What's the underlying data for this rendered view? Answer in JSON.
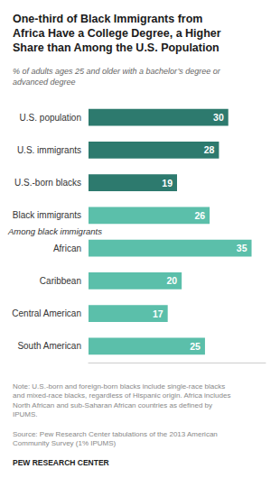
{
  "chart_data": {
    "type": "bar",
    "orientation": "horizontal",
    "title": "One-third of Black Immigrants from\nAfrica Have a College Degree, a Higher\nShare than Among the U.S. Population",
    "subtitle": "% of adults ages 25 and older with a bachelor’s degree or\nadvanced degree",
    "categories": [
      "U.S. population",
      "U.S. immigrants",
      "U.S.-born blacks",
      "Black immigrants",
      "African",
      "Caribbean",
      "Central American",
      "South American"
    ],
    "values": [
      30,
      28,
      19,
      26,
      35,
      20,
      17,
      25
    ],
    "colors": [
      "#2d7a6e",
      "#2d7a6e",
      "#2d7a6e",
      "#5bbfaa",
      "#5bbfaa",
      "#5bbfaa",
      "#5bbfaa",
      "#5bbfaa"
    ],
    "annotations": [
      "Among black immigrants"
    ],
    "note": "Note: U.S.-born and foreign-born blacks include single-race blacks\nand mixed-race blacks, regardless of Hispanic origin. Africa includes\nNorth African and sub-Saharan African countries as defined by\nIPUMS.",
    "source": "Source: Pew Research Center tabulations of the 2013 American\nCommunity Survey (1% IPUMS)",
    "branding": "PEW RESEARCH CENTER",
    "xlim": [
      0,
      38
    ],
    "data_labels": true,
    "tick_labels": "y",
    "grid": false
  }
}
